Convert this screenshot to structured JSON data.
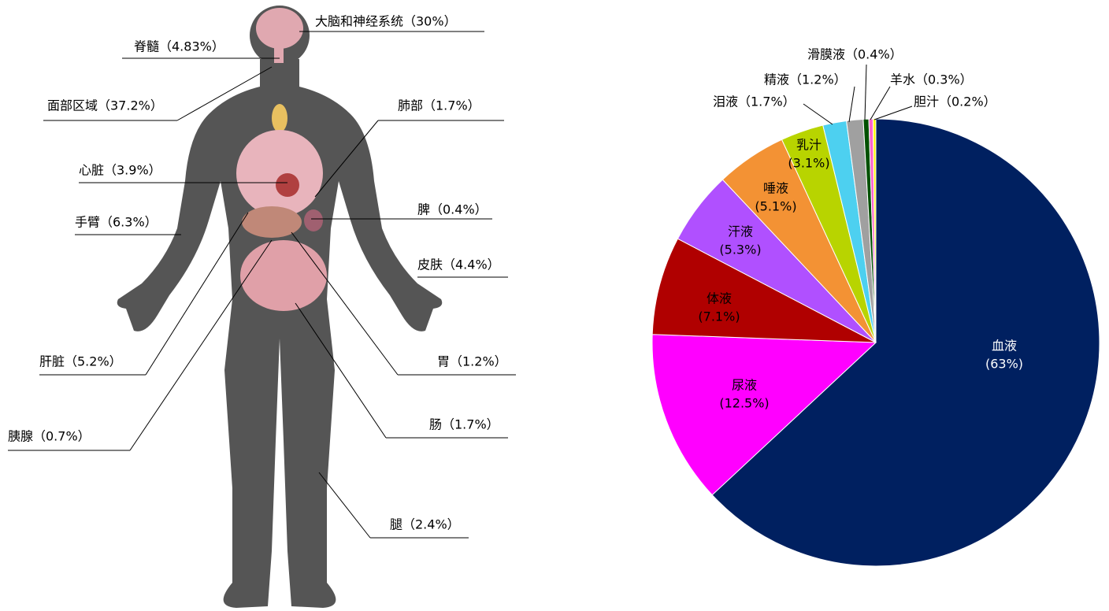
{
  "body_diagram": {
    "labels": [
      "大脑和神经系统（30%）",
      "脊髓（4.83%）",
      "面部区域（37.2%）",
      "肺部（1.7%）",
      "心脏（3.9%）",
      "脾（0.4%）",
      "手臂（6.3%）",
      "皮肤（4.4%）",
      "肝脏（5.2%）",
      "胃（1.2%）",
      "胰腺（0.7%）",
      "肠（1.7%）",
      "腿（2.4%）"
    ]
  },
  "chart_data": {
    "type": "pie",
    "categories": [
      "血液",
      "尿液",
      "体液",
      "汗液",
      "唾液",
      "乳汁",
      "泪液",
      "精液",
      "滑膜液",
      "羊水",
      "胆汁"
    ],
    "values": [
      63,
      12.5,
      7.1,
      5.3,
      5.1,
      3.1,
      1.7,
      1.2,
      0.4,
      0.3,
      0.2
    ],
    "value_labels": [
      "(63%)",
      "(12.5%)",
      "(7.1%)",
      "(5.3%)",
      "(5.1%)",
      "(3.1%)",
      "（1.7%）",
      "（1.2%）",
      "（0.4%）",
      "（0.3%）",
      "（0.2%）"
    ],
    "colors": [
      "#002060",
      "#ff00ff",
      "#b00000",
      "#b050ff",
      "#f39234",
      "#b8d400",
      "#4dd0f0",
      "#a0a0a0",
      "#005000",
      "#ff66cc",
      "#ffff00"
    ]
  }
}
